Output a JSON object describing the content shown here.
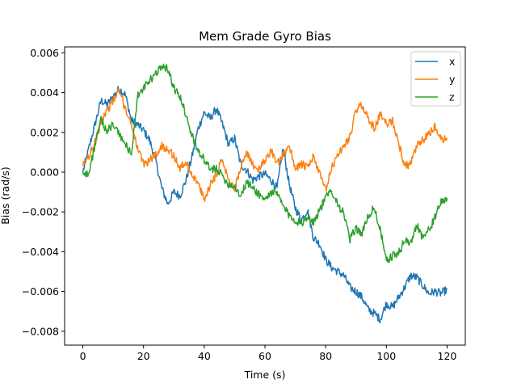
{
  "chart_data": {
    "type": "line",
    "title": "Mem Grade Gyro Bias",
    "xlabel": "Time (s)",
    "ylabel": "Bias (rad/s)",
    "xlim": [
      -6,
      126
    ],
    "ylim": [
      -0.0087,
      0.0063
    ],
    "xticks": [
      0,
      20,
      40,
      60,
      80,
      100,
      120
    ],
    "xtick_labels": [
      "0",
      "20",
      "40",
      "60",
      "80",
      "100",
      "120"
    ],
    "yticks": [
      -0.008,
      -0.006,
      -0.004,
      -0.002,
      0.0,
      0.002,
      0.004,
      0.006
    ],
    "ytick_labels": [
      "−0.008",
      "−0.006",
      "−0.004",
      "−0.002",
      "0.000",
      "0.002",
      "0.004",
      "0.006"
    ],
    "grid": false,
    "legend_position": "top-right",
    "series": [
      {
        "name": "x",
        "color": "#1f77b4",
        "x": [
          0,
          2,
          4,
          6,
          8,
          10,
          12,
          14,
          16,
          18,
          20,
          22,
          24,
          26,
          28,
          30,
          32,
          34,
          36,
          38,
          40,
          42,
          44,
          46,
          48,
          50,
          52,
          54,
          56,
          58,
          60,
          62,
          64,
          66,
          68,
          70,
          72,
          74,
          76,
          78,
          80,
          82,
          84,
          86,
          88,
          90,
          92,
          94,
          96,
          98,
          100,
          102,
          104,
          106,
          108,
          110,
          112,
          114,
          116,
          118,
          120
        ],
        "y": [
          0.0,
          0.0012,
          0.0024,
          0.0036,
          0.0034,
          0.0038,
          0.0042,
          0.0039,
          0.0026,
          0.0024,
          0.0021,
          0.0016,
          0.0006,
          -0.0008,
          -0.0016,
          -0.001,
          -0.0012,
          -0.0004,
          0.0008,
          0.0022,
          0.003,
          0.0027,
          0.0032,
          0.0024,
          0.0014,
          0.0017,
          0.0004,
          0.0001,
          -0.0004,
          -0.0002,
          -0.0001,
          -0.0004,
          -0.0008,
          0.0012,
          -0.0006,
          -0.0018,
          -0.0024,
          -0.0019,
          -0.0033,
          -0.0036,
          -0.0044,
          -0.0048,
          -0.005,
          -0.0052,
          -0.0058,
          -0.006,
          -0.0063,
          -0.0069,
          -0.0071,
          -0.0074,
          -0.0066,
          -0.0068,
          -0.0063,
          -0.0058,
          -0.0052,
          -0.0053,
          -0.0057,
          -0.0061,
          -0.006,
          -0.0061,
          -0.0059
        ]
      },
      {
        "name": "y",
        "color": "#ff7f0e",
        "x": [
          0,
          2,
          4,
          6,
          8,
          10,
          12,
          14,
          16,
          18,
          20,
          22,
          24,
          26,
          28,
          30,
          32,
          34,
          36,
          38,
          40,
          42,
          44,
          46,
          48,
          50,
          52,
          54,
          56,
          58,
          60,
          62,
          64,
          66,
          68,
          70,
          72,
          74,
          76,
          78,
          80,
          82,
          84,
          86,
          88,
          90,
          92,
          94,
          96,
          98,
          100,
          102,
          104,
          106,
          108,
          110,
          112,
          114,
          116,
          118,
          120
        ],
        "y": [
          0.0003,
          0.0008,
          0.0015,
          0.0026,
          0.0031,
          0.0036,
          0.0041,
          0.0032,
          0.0024,
          0.0012,
          0.0004,
          0.0006,
          0.0009,
          0.0013,
          0.0012,
          0.0008,
          0.0002,
          0.0005,
          -0.0001,
          -0.0006,
          -0.0014,
          -0.0006,
          -0.0001,
          0.0007,
          -0.0004,
          -0.0009,
          0.0003,
          0.0009,
          0.0004,
          0.0001,
          0.0006,
          0.0011,
          0.0004,
          0.0008,
          0.0014,
          0.0002,
          0.0004,
          0.0002,
          0.0008,
          -0.0001,
          -0.0009,
          0.0002,
          0.0009,
          0.0013,
          0.0018,
          0.0031,
          0.0034,
          0.0027,
          0.0022,
          0.0029,
          0.0024,
          0.0026,
          0.0015,
          0.0003,
          0.0004,
          0.0013,
          0.0016,
          0.0019,
          0.0023,
          0.0016,
          0.0017
        ]
      },
      {
        "name": "z",
        "color": "#2ca02c",
        "x": [
          0,
          2,
          4,
          6,
          8,
          10,
          12,
          14,
          16,
          18,
          20,
          22,
          24,
          26,
          28,
          30,
          32,
          34,
          36,
          38,
          40,
          42,
          44,
          46,
          48,
          50,
          52,
          54,
          56,
          58,
          60,
          62,
          64,
          66,
          68,
          70,
          72,
          74,
          76,
          78,
          80,
          82,
          84,
          86,
          88,
          90,
          92,
          94,
          96,
          98,
          100,
          102,
          104,
          106,
          108,
          110,
          112,
          114,
          116,
          118,
          120
        ],
        "y": [
          0.0,
          -0.0001,
          0.0014,
          0.0026,
          0.0021,
          0.0024,
          0.0019,
          0.0014,
          0.0009,
          0.0038,
          0.0042,
          0.0046,
          0.0049,
          0.0054,
          0.0052,
          0.0042,
          0.0038,
          0.0029,
          0.0018,
          0.0011,
          0.0006,
          0.0001,
          0.0002,
          -0.0002,
          -0.0006,
          -0.0007,
          -0.0012,
          -0.0005,
          -0.0008,
          -0.0011,
          -0.0014,
          -0.001,
          -0.0011,
          -0.0017,
          -0.0022,
          -0.0024,
          -0.0026,
          -0.0022,
          -0.0025,
          -0.0019,
          -0.0013,
          -0.0009,
          -0.0016,
          -0.0021,
          -0.0034,
          -0.0028,
          -0.0031,
          -0.0022,
          -0.0018,
          -0.0029,
          -0.0045,
          -0.0042,
          -0.0041,
          -0.0034,
          -0.0036,
          -0.0026,
          -0.0033,
          -0.0029,
          -0.0023,
          -0.0015,
          -0.0013
        ]
      }
    ]
  }
}
